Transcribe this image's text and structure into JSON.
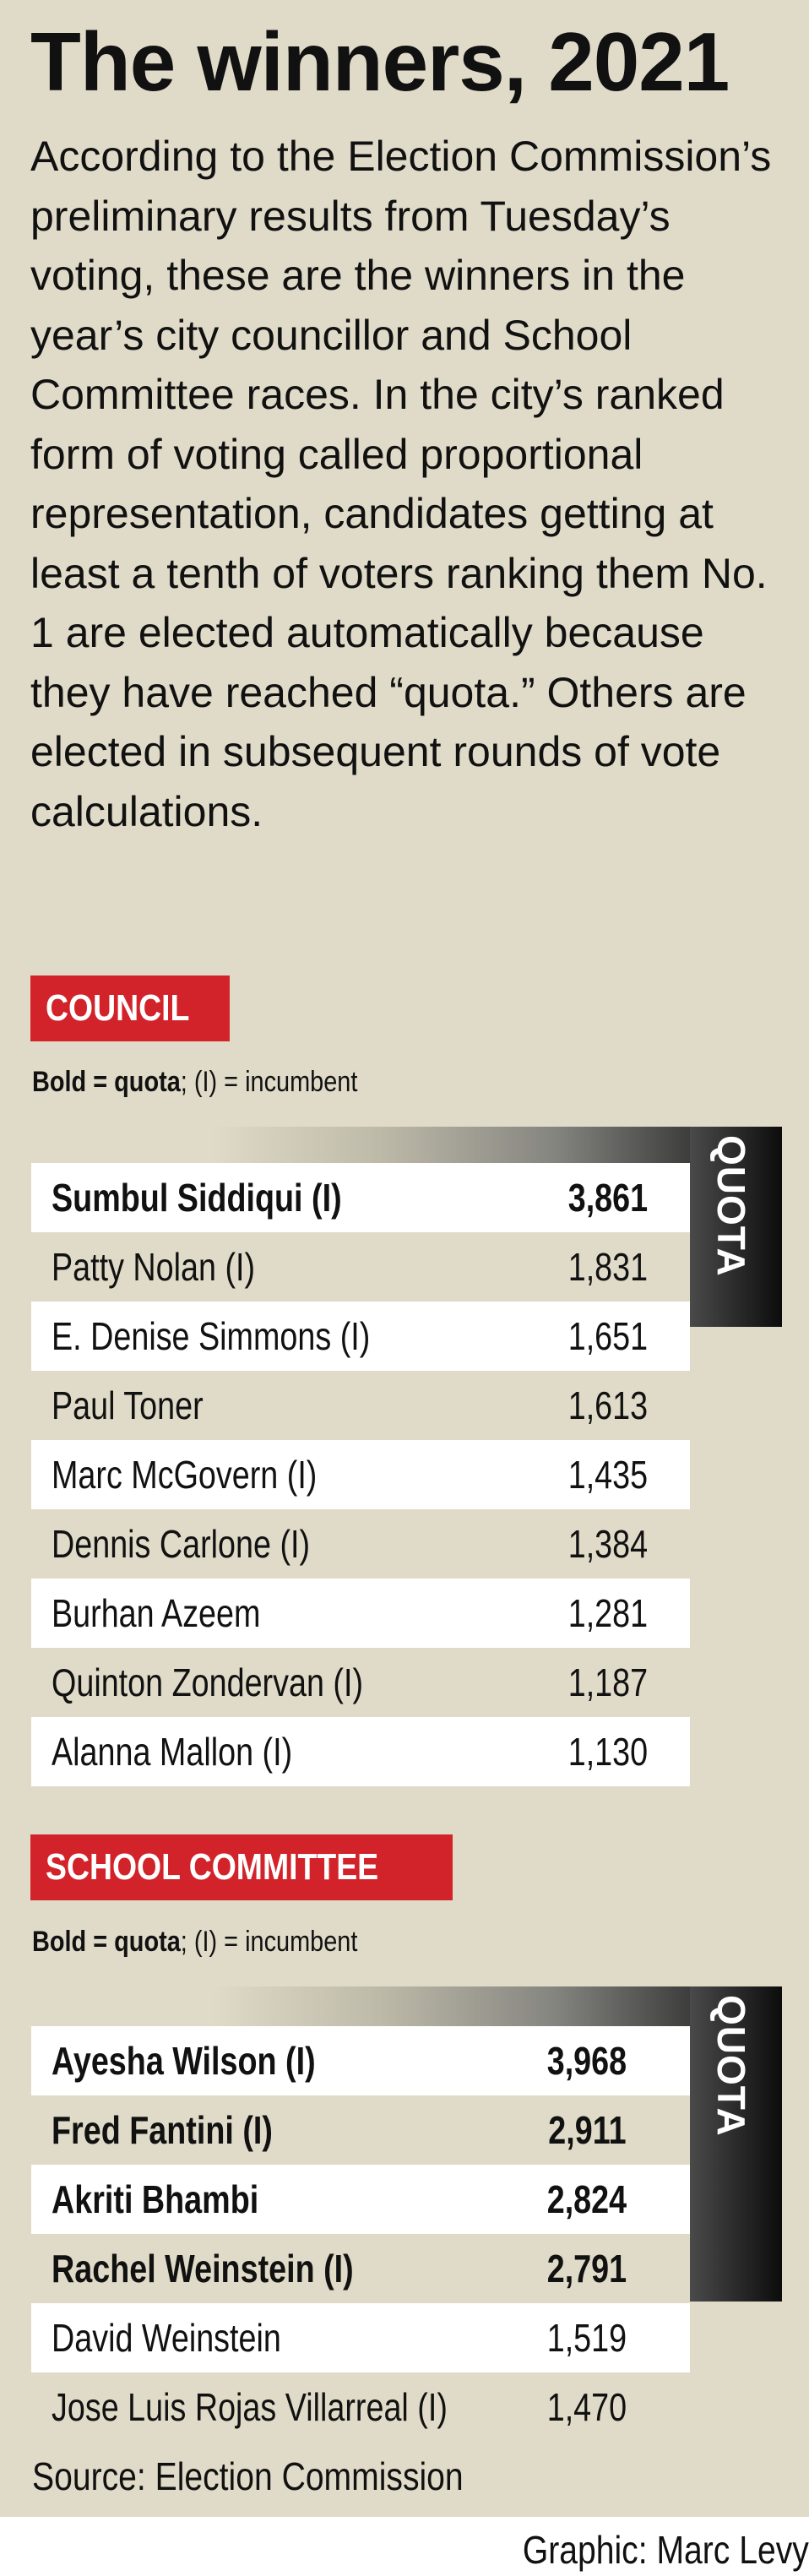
{
  "title": "The winners, 2021",
  "intro": "According to the Election Commission’s preliminary results from Tuesday’s voting, these are the winners in the year’s city councillor and School Committee races. In the city’s ranked form of voting called proportional representation, candidates getting at least a tenth of voters ranking them No. 1 are elected automatically because they have reached “quota.” Others are elected in subsequent rounds of vote calculations.",
  "colors": {
    "background": "#e0dbc8",
    "badge": "#d2232a",
    "quota_box": "#1a1a1a"
  },
  "legend": {
    "bold_part": "Bold = quota",
    "rest": "; (I) = incumbent"
  },
  "quota_label": "QUOTA",
  "council": {
    "heading": "COUNCIL",
    "rows": [
      {
        "name": "Sumbul Siddiqui (I)",
        "votes": "3,861",
        "quota": true
      },
      {
        "name": "Patty Nolan (I)",
        "votes": "1,831",
        "quota": false
      },
      {
        "name": "E. Denise Simmons (I)",
        "votes": "1,651",
        "quota": false
      },
      {
        "name": "Paul Toner",
        "votes": "1,613",
        "quota": false
      },
      {
        "name": "Marc McGovern (I)",
        "votes": "1,435",
        "quota": false
      },
      {
        "name": "Dennis Carlone (I)",
        "votes": "1,384",
        "quota": false
      },
      {
        "name": "Burhan Azeem",
        "votes": "1,281",
        "quota": false
      },
      {
        "name": "Quinton Zondervan (I)",
        "votes": "1,187",
        "quota": false
      },
      {
        "name": "Alanna Mallon (I)",
        "votes": "1,130",
        "quota": false
      }
    ]
  },
  "school": {
    "heading": "SCHOOL COMMITTEE",
    "rows": [
      {
        "name": "Ayesha Wilson (I)",
        "votes": "3,968",
        "quota": true
      },
      {
        "name": "Fred Fantini (I)",
        "votes": "2,911",
        "quota": true
      },
      {
        "name": "Akriti Bhambi",
        "votes": "2,824",
        "quota": true
      },
      {
        "name": "Rachel Weinstein (I)",
        "votes": "2,791",
        "quota": true
      },
      {
        "name": "David Weinstein",
        "votes": "1,519",
        "quota": false
      },
      {
        "name": "Jose Luis Rojas Villarreal (I)",
        "votes": "1,470",
        "quota": false
      }
    ]
  },
  "source": "Source: Election Commission",
  "credit": "Graphic: Marc Levy"
}
